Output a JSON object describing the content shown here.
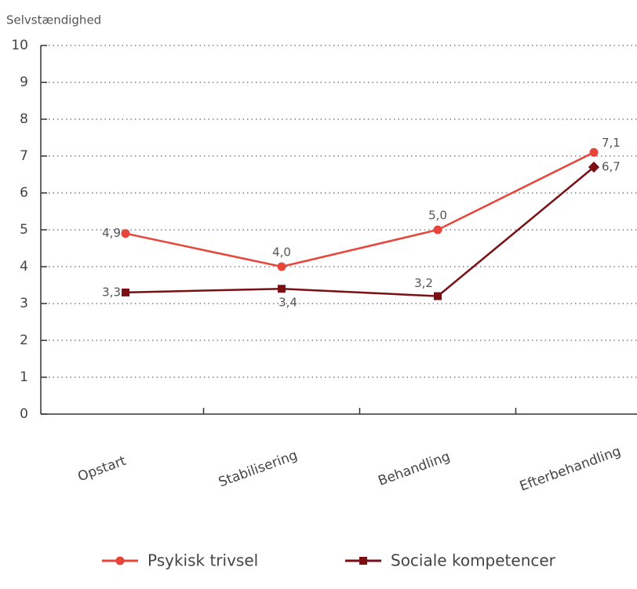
{
  "chart_data": {
    "type": "line",
    "y_axis_label": "Selvstændighed",
    "categories": [
      "Opstart",
      "Stabilisering",
      "Behandling",
      "Efterbehandling"
    ],
    "series": [
      {
        "name": "Psykisk trivsel",
        "color": "#e8443a",
        "marker": "circle",
        "values": [
          4.9,
          4.0,
          5.0,
          7.1
        ],
        "value_labels": [
          "4,9",
          "4,0",
          "5,0",
          "7,1"
        ]
      },
      {
        "name": "Sociale kompetencer",
        "color": "#7a0f14",
        "marker": "square",
        "values": [
          3.3,
          3.4,
          3.2,
          6.7
        ],
        "value_labels": [
          "3,3",
          "3,4",
          "3,2",
          "6,7"
        ]
      }
    ],
    "ylim": [
      0,
      10
    ],
    "yticks": [
      0,
      1,
      2,
      3,
      4,
      5,
      6,
      7,
      8,
      9,
      10
    ],
    "grid": true,
    "legend": "bottom"
  }
}
